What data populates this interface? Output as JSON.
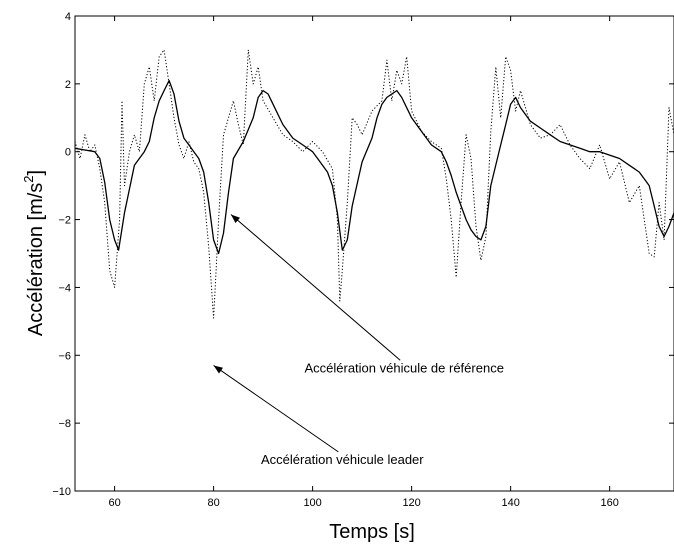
{
  "chart_data": {
    "type": "line",
    "title": "",
    "xlabel": "Temps [s]",
    "ylabel_main": "Accélération [m/s",
    "ylabel_sup": "2",
    "ylabel_end": "]",
    "xlim": [
      52,
      173
    ],
    "ylim": [
      -10,
      4
    ],
    "xticks": [
      60,
      80,
      100,
      120,
      140,
      160
    ],
    "yticks": [
      -10,
      -8,
      -6,
      -4,
      -2,
      0,
      2,
      4
    ],
    "grid": false,
    "legend": "none",
    "series": [
      {
        "name": "Accélération véhicule de référence",
        "style": "solid",
        "color": "#000000",
        "x": [
          52,
          54,
          56,
          57,
          58,
          59,
          60,
          60.8,
          62,
          64,
          66,
          67,
          68,
          69,
          70,
          71,
          72,
          73,
          74,
          75,
          76,
          77,
          78,
          79,
          80,
          81,
          82,
          83,
          84,
          86,
          88,
          89,
          90,
          91,
          92,
          94,
          96,
          98,
          100,
          101,
          102,
          103,
          104,
          105,
          106,
          107,
          108,
          110,
          112,
          113,
          114,
          115,
          116,
          117,
          118,
          120,
          122,
          124,
          126,
          127,
          128,
          129,
          130,
          131,
          132,
          133,
          134,
          135,
          136,
          138,
          139,
          140,
          141,
          142,
          144,
          146,
          148,
          150,
          152,
          154,
          156,
          158,
          160,
          162,
          164,
          166,
          168,
          169,
          170,
          171,
          172,
          173
        ],
        "y": [
          0.1,
          0.05,
          0.0,
          -0.2,
          -0.9,
          -2.0,
          -2.6,
          -2.9,
          -1.8,
          -0.4,
          0.0,
          0.3,
          1.0,
          1.5,
          1.8,
          2.1,
          1.7,
          0.9,
          0.4,
          0.2,
          0.0,
          -0.2,
          -0.6,
          -1.5,
          -2.6,
          -3.0,
          -2.4,
          -1.2,
          -0.2,
          0.3,
          1.0,
          1.6,
          1.8,
          1.7,
          1.4,
          0.8,
          0.4,
          0.2,
          0.0,
          -0.2,
          -0.4,
          -0.6,
          -1.0,
          -1.8,
          -2.9,
          -2.6,
          -1.6,
          -0.3,
          0.4,
          1.0,
          1.4,
          1.6,
          1.7,
          1.8,
          1.6,
          1.0,
          0.6,
          0.2,
          0.0,
          -0.3,
          -0.7,
          -1.2,
          -1.6,
          -2.0,
          -2.3,
          -2.5,
          -2.6,
          -2.2,
          -1.0,
          0.2,
          0.8,
          1.4,
          1.6,
          1.3,
          0.9,
          0.7,
          0.5,
          0.3,
          0.2,
          0.1,
          0.0,
          0.0,
          -0.1,
          -0.2,
          -0.4,
          -0.6,
          -1.0,
          -1.6,
          -2.2,
          -2.5,
          -2.2,
          -1.8
        ]
      },
      {
        "name": "Accélération véhicule leader",
        "style": "dotted",
        "color": "#000000",
        "x": [
          52,
          53,
          54,
          55,
          56,
          57,
          58,
          58.5,
          59,
          60,
          61,
          61.5,
          62,
          63,
          64,
          65,
          66,
          67,
          68,
          69,
          70,
          71,
          72,
          73,
          74,
          75,
          76,
          77,
          78,
          79,
          80,
          80.5,
          81,
          82,
          83,
          84,
          85,
          86,
          87,
          88,
          89,
          90,
          92,
          94,
          96,
          98,
          100,
          102,
          104,
          105,
          105.5,
          106,
          107,
          108,
          109,
          110,
          112,
          114,
          115,
          116,
          117,
          118,
          119,
          120,
          122,
          124,
          126,
          127,
          128,
          129,
          130,
          131,
          132,
          133,
          134,
          135,
          136,
          137,
          138,
          139,
          140,
          141,
          142,
          144,
          146,
          148,
          150,
          152,
          154,
          156,
          158,
          160,
          162,
          164,
          166,
          168,
          169,
          170,
          171,
          172,
          173
        ],
        "y": [
          0.3,
          -0.2,
          0.5,
          0.0,
          0.2,
          -0.5,
          -1.5,
          -2.5,
          -3.5,
          -4.0,
          -2.0,
          1.5,
          -1.0,
          0.0,
          0.5,
          0.0,
          2.0,
          2.5,
          1.5,
          2.8,
          3.0,
          2.0,
          1.0,
          0.2,
          -0.2,
          0.3,
          -0.3,
          -0.5,
          -1.2,
          -2.8,
          -4.9,
          -3.5,
          -2.0,
          0.5,
          1.0,
          1.5,
          0.8,
          0.2,
          3.0,
          2.0,
          2.5,
          1.5,
          1.0,
          0.5,
          0.3,
          0.0,
          0.3,
          0.0,
          -0.5,
          -2.0,
          -4.4,
          -3.5,
          -1.5,
          1.0,
          0.8,
          0.5,
          1.2,
          1.5,
          2.7,
          1.5,
          2.4,
          2.0,
          2.8,
          1.2,
          0.6,
          0.3,
          0.1,
          -0.8,
          -2.0,
          -3.7,
          -1.5,
          0.5,
          -0.2,
          -2.2,
          -3.2,
          -2.5,
          0.6,
          2.5,
          1.0,
          2.8,
          2.4,
          1.2,
          1.8,
          0.8,
          0.4,
          0.5,
          0.8,
          0.2,
          -0.2,
          -0.5,
          0.2,
          -0.8,
          -0.3,
          -1.5,
          -1.0,
          -3.0,
          -3.1,
          -1.5,
          -2.6,
          1.3,
          0.5
        ]
      }
    ],
    "annotations": [
      {
        "text": "Accélération véhicule de référence",
        "text_x": 118.5,
        "text_y": -6.5,
        "arrow_x": 83.5,
        "arrow_y": -1.85
      },
      {
        "text": "Accélération véhicule leader",
        "text_x": 106,
        "text_y": -9.2,
        "arrow_x": 80,
        "arrow_y": -6.3
      }
    ]
  }
}
